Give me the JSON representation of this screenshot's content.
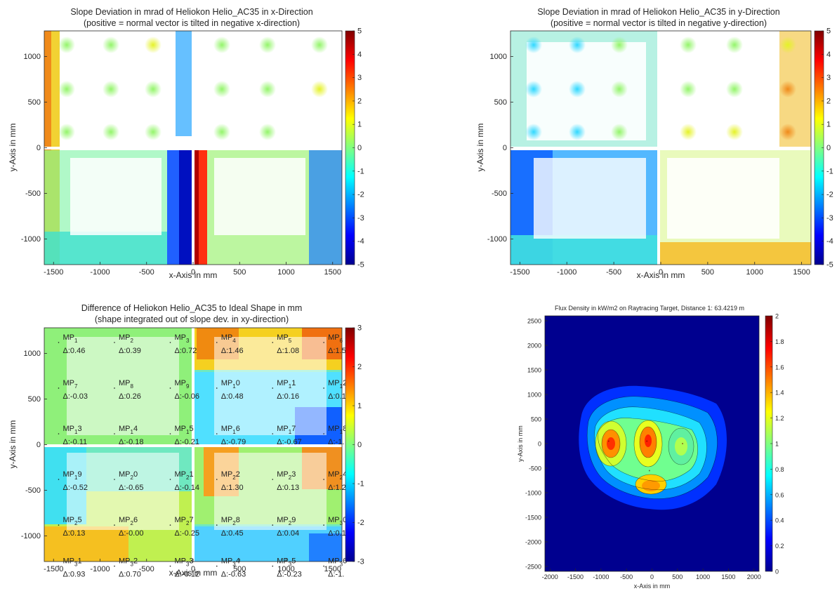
{
  "chart_data": [
    {
      "type": "heatmap",
      "title": "Slope Deviation in mrad of Heliokon Helio_AC35 in x-Direction",
      "subtitle": "(positive = normal vector is tilted in negative x-direction)",
      "xlabel": "x-Axis in mm",
      "ylabel": "y-Axis in mm",
      "xlim": [
        -1600,
        1600
      ],
      "ylim": [
        -1280,
        1280
      ],
      "xticks": [
        -1500,
        -1000,
        -500,
        0,
        500,
        1000,
        1500
      ],
      "yticks": [
        -1000,
        -500,
        0,
        500,
        1000
      ],
      "colorbar": {
        "min": -5,
        "max": 5,
        "ticks": [
          5,
          4,
          3,
          2,
          1,
          0,
          -1,
          -2,
          -3,
          -4,
          -5
        ],
        "colormap": "jet"
      }
    },
    {
      "type": "heatmap",
      "title": "Slope Deviation in mrad of Heliokon Helio_AC35 in y-Direction",
      "subtitle": "(positive = normal vector is tilted in negative y-direction)",
      "xlabel": "x-Axis in mm",
      "ylabel": "y-Axis in mm",
      "xlim": [
        -1600,
        1600
      ],
      "ylim": [
        -1280,
        1280
      ],
      "xticks": [
        -1500,
        -1000,
        -500,
        0,
        500,
        1000,
        1500
      ],
      "yticks": [
        -1000,
        -500,
        0,
        500,
        1000
      ],
      "colorbar": {
        "min": -5,
        "max": 5,
        "ticks": [
          5,
          4,
          3,
          2,
          1,
          0,
          -1,
          -2,
          -3,
          -4,
          -5
        ],
        "colormap": "jet"
      }
    },
    {
      "type": "heatmap",
      "title": "Difference of Heliokon Helio_AC35 to Ideal Shape in mm",
      "subtitle": "(shape integrated out of slope dev. in xy-direction)",
      "xlabel": "x-Axis in mm",
      "ylabel": "y-Axis in mm",
      "xlim": [
        -1600,
        1600
      ],
      "ylim": [
        -1280,
        1280
      ],
      "xticks": [
        -1500,
        -1000,
        -500,
        0,
        500,
        1000,
        1500
      ],
      "yticks": [
        -1000,
        -500,
        0,
        500,
        1000
      ],
      "colorbar": {
        "min": -3,
        "max": 3,
        "ticks": [
          3,
          2,
          1,
          0,
          -1,
          -2,
          -3
        ],
        "colormap": "jet"
      },
      "measurement_points": [
        {
          "name": "MP",
          "sub": "1",
          "post": "",
          "delta": "Δ:0.46"
        },
        {
          "name": "MP",
          "sub": "2",
          "post": "",
          "delta": "Δ:0.39"
        },
        {
          "name": "MP",
          "sub": "3",
          "post": "",
          "delta": "Δ:0.72"
        },
        {
          "name": "MP",
          "sub": "4",
          "post": "",
          "delta": "Δ:1.46"
        },
        {
          "name": "MP",
          "sub": "5",
          "post": "",
          "delta": "Δ:1.08"
        },
        {
          "name": "MP",
          "sub": "6",
          "post": "",
          "delta": "Δ:1.5"
        },
        {
          "name": "MP",
          "sub": "7",
          "post": "",
          "delta": "Δ:-0.03"
        },
        {
          "name": "MP",
          "sub": "8",
          "post": "",
          "delta": "Δ:0.26"
        },
        {
          "name": "MP",
          "sub": "9",
          "post": "",
          "delta": "Δ:-0.06"
        },
        {
          "name": "MP",
          "sub": "1",
          "post": "0",
          "delta": "Δ:0.48"
        },
        {
          "name": "MP",
          "sub": "1",
          "post": "1",
          "delta": "Δ:0.16"
        },
        {
          "name": "MP",
          "sub": "1",
          "post": "2",
          "delta": "Δ:0.1"
        },
        {
          "name": "MP",
          "sub": "1",
          "post": "3",
          "delta": "Δ:-0.11"
        },
        {
          "name": "MP",
          "sub": "1",
          "post": "4",
          "delta": "Δ:-0.18"
        },
        {
          "name": "MP",
          "sub": "1",
          "post": "5",
          "delta": "Δ:-0.21"
        },
        {
          "name": "MP",
          "sub": "1",
          "post": "6",
          "delta": "Δ:-0.79"
        },
        {
          "name": "MP",
          "sub": "1",
          "post": "7",
          "delta": "Δ:-0.67"
        },
        {
          "name": "MP",
          "sub": "1",
          "post": "8",
          "delta": "Δ:-1."
        },
        {
          "name": "MP",
          "sub": "1",
          "post": "9",
          "delta": "Δ:-0.52"
        },
        {
          "name": "MP",
          "sub": "2",
          "post": "0",
          "delta": "Δ:-0.65"
        },
        {
          "name": "MP",
          "sub": "2",
          "post": "1",
          "delta": "Δ:-0.14"
        },
        {
          "name": "MP",
          "sub": "2",
          "post": "2",
          "delta": "Δ:1.30"
        },
        {
          "name": "MP",
          "sub": "2",
          "post": "3",
          "delta": "Δ:0.13"
        },
        {
          "name": "MP",
          "sub": "2",
          "post": "4",
          "delta": "Δ:1.2"
        },
        {
          "name": "MP",
          "sub": "2",
          "post": "5",
          "delta": "Δ:0.13"
        },
        {
          "name": "MP",
          "sub": "2",
          "post": "6",
          "delta": "Δ:-0.00"
        },
        {
          "name": "MP",
          "sub": "2",
          "post": "7",
          "delta": "Δ:-0.25"
        },
        {
          "name": "MP",
          "sub": "2",
          "post": "8",
          "delta": "Δ:0.45"
        },
        {
          "name": "MP",
          "sub": "2",
          "post": "9",
          "delta": "Δ:0.04"
        },
        {
          "name": "MP",
          "sub": "3",
          "post": "0",
          "delta": "Δ:0.1"
        },
        {
          "name": "MP",
          "sub": "3",
          "post": "1",
          "delta": "Δ:0.93"
        },
        {
          "name": "MP",
          "sub": "3",
          "post": "2",
          "delta": "Δ:0.70"
        },
        {
          "name": "MP",
          "sub": "3",
          "post": "3",
          "delta": "Δ:-0.12"
        },
        {
          "name": "MP",
          "sub": "3",
          "post": "4",
          "delta": "Δ:-0.63"
        },
        {
          "name": "MP",
          "sub": "3",
          "post": "5",
          "delta": "Δ:-0.23"
        },
        {
          "name": "MP",
          "sub": "3",
          "post": "6",
          "delta": "Δ:-1."
        }
      ]
    },
    {
      "type": "heatmap",
      "title": "Flux Density in kW/m2 on Raytracing Target, Distance 1: 63.4219 m",
      "xlabel": "x-Axis in mm",
      "ylabel": "y-Axis in mm",
      "xlim": [
        -2100,
        2100
      ],
      "ylim": [
        -2600,
        2600
      ],
      "xticks": [
        -2000,
        -1500,
        -1000,
        -500,
        0,
        500,
        1000,
        1500,
        2000
      ],
      "yticks": [
        2500,
        2000,
        1500,
        1000,
        500,
        0,
        -500,
        -1000,
        -1500,
        -2000,
        -2500
      ],
      "colorbar": {
        "min": 0,
        "max": 2,
        "ticks": [
          2,
          1.8,
          1.6,
          1.4,
          1.2,
          1,
          0.8,
          0.6,
          0.4,
          0.2,
          0
        ],
        "colormap": "jet"
      },
      "peaks": [
        {
          "x": -850,
          "y": 50,
          "value": 1.7
        },
        {
          "x": -100,
          "y": 50,
          "value": 1.75
        },
        {
          "x": -50,
          "y": -550,
          "value": 1.6
        },
        {
          "x": 600,
          "y": 0,
          "value": 1.2
        }
      ]
    }
  ]
}
